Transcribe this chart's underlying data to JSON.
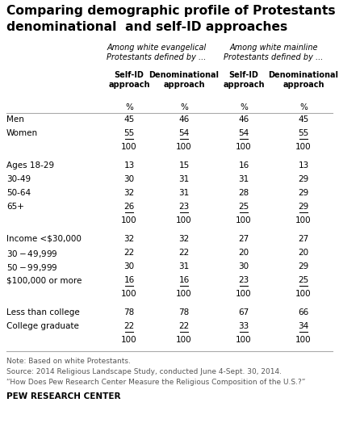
{
  "title_line1": "Comparing demographic profile of Protestants under",
  "title_line2": "denominational  and self-ID approaches",
  "col_group1_label": "Among white evangelical\nProtestants defined by ...",
  "col_group2_label": "Among white mainline\nProtestants defined by ...",
  "col_headers": [
    "Self-ID\napproach",
    "Denominational\napproach",
    "Self-ID\napproach",
    "Denominational\napproach"
  ],
  "rows": [
    {
      "label": "Men",
      "vals": [
        "45",
        "46",
        "46",
        "45"
      ],
      "underline": [
        false,
        false,
        false,
        false
      ],
      "spacer": false,
      "total": false
    },
    {
      "label": "Women",
      "vals": [
        "55",
        "54",
        "54",
        "55"
      ],
      "underline": [
        true,
        true,
        true,
        true
      ],
      "spacer": false,
      "total": false
    },
    {
      "label": "",
      "vals": [
        "100",
        "100",
        "100",
        "100"
      ],
      "underline": [
        false,
        false,
        false,
        false
      ],
      "spacer": false,
      "total": true
    },
    {
      "label": "spacer",
      "vals": [],
      "underline": [],
      "spacer": true,
      "total": false
    },
    {
      "label": "Ages 18-29",
      "vals": [
        "13",
        "15",
        "16",
        "13"
      ],
      "underline": [
        false,
        false,
        false,
        false
      ],
      "spacer": false,
      "total": false
    },
    {
      "label": "30-49",
      "vals": [
        "30",
        "31",
        "31",
        "29"
      ],
      "underline": [
        false,
        false,
        false,
        false
      ],
      "spacer": false,
      "total": false
    },
    {
      "label": "50-64",
      "vals": [
        "32",
        "31",
        "28",
        "29"
      ],
      "underline": [
        false,
        false,
        false,
        false
      ],
      "spacer": false,
      "total": false
    },
    {
      "label": "65+",
      "vals": [
        "26",
        "23",
        "25",
        "29"
      ],
      "underline": [
        true,
        true,
        true,
        true
      ],
      "spacer": false,
      "total": false
    },
    {
      "label": "",
      "vals": [
        "100",
        "100",
        "100",
        "100"
      ],
      "underline": [
        false,
        false,
        false,
        false
      ],
      "spacer": false,
      "total": true
    },
    {
      "label": "spacer",
      "vals": [],
      "underline": [],
      "spacer": true,
      "total": false
    },
    {
      "label": "Income <$30,000",
      "vals": [
        "32",
        "32",
        "27",
        "27"
      ],
      "underline": [
        false,
        false,
        false,
        false
      ],
      "spacer": false,
      "total": false
    },
    {
      "label": "$30-$49,999",
      "vals": [
        "22",
        "22",
        "20",
        "20"
      ],
      "underline": [
        false,
        false,
        false,
        false
      ],
      "spacer": false,
      "total": false
    },
    {
      "label": "$50-$99,999",
      "vals": [
        "30",
        "31",
        "30",
        "29"
      ],
      "underline": [
        false,
        false,
        false,
        false
      ],
      "spacer": false,
      "total": false
    },
    {
      "label": "$100,000 or more",
      "vals": [
        "16",
        "16",
        "23",
        "25"
      ],
      "underline": [
        true,
        true,
        true,
        true
      ],
      "spacer": false,
      "total": false
    },
    {
      "label": "",
      "vals": [
        "100",
        "100",
        "100",
        "100"
      ],
      "underline": [
        false,
        false,
        false,
        false
      ],
      "spacer": false,
      "total": true
    },
    {
      "label": "spacer",
      "vals": [],
      "underline": [],
      "spacer": true,
      "total": false
    },
    {
      "label": "Less than college",
      "vals": [
        "78",
        "78",
        "67",
        "66"
      ],
      "underline": [
        false,
        false,
        false,
        false
      ],
      "spacer": false,
      "total": false
    },
    {
      "label": "College graduate",
      "vals": [
        "22",
        "22",
        "33",
        "34"
      ],
      "underline": [
        true,
        true,
        true,
        true
      ],
      "spacer": false,
      "total": false
    },
    {
      "label": "",
      "vals": [
        "100",
        "100",
        "100",
        "100"
      ],
      "underline": [
        false,
        false,
        false,
        false
      ],
      "spacer": false,
      "total": true
    }
  ],
  "note_lines": [
    "Note: Based on white Protestants.",
    "Source: 2014 Religious Landscape Study, conducted June 4-Sept. 30, 2014.",
    "“How Does Pew Research Center Measure the Religious Composition of the U.S.?”"
  ],
  "footer": "PEW RESEARCH CENTER",
  "bg_color": "#ffffff",
  "text_color": "#000000",
  "note_color": "#555555",
  "line_color": "#aaaaaa"
}
